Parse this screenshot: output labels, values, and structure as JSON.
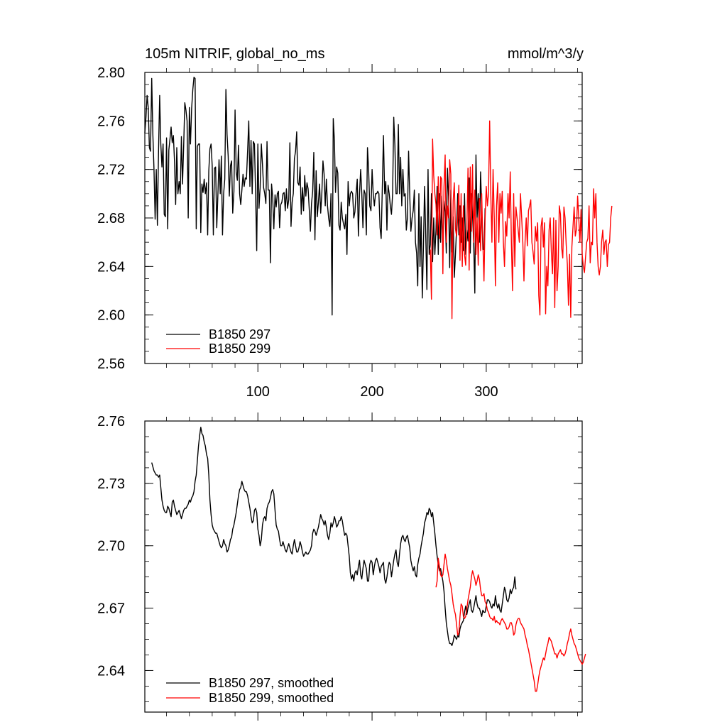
{
  "chart_data": [
    {
      "type": "line",
      "title": "105m NITRIF, global_no_ms",
      "units": "mmol/m^3/y",
      "xlim": [
        1,
        384
      ],
      "ylim": [
        2.56,
        2.8
      ],
      "xticks": [
        100,
        200,
        300
      ],
      "yticks": [
        2.56,
        2.6,
        2.64,
        2.68,
        2.72,
        2.76,
        2.8
      ],
      "ytick_labels": [
        "2.56",
        "2.60",
        "2.64",
        "2.68",
        "2.72",
        "2.76",
        "2.80"
      ],
      "xtick_labels": [
        "100",
        "200",
        "300"
      ],
      "legend_position": "bottom-left",
      "series": [
        {
          "name": "B1850 297",
          "color": "#000000",
          "x_start": 1,
          "x_step": 1,
          "values": [
            2.75,
            2.763,
            2.781,
            2.771,
            2.738,
            2.735,
            2.795,
            2.749,
            2.72,
            2.679,
            2.72,
            2.674,
            2.735,
            2.781,
            2.741,
            2.722,
            2.741,
            2.683,
            2.681,
            2.746,
            2.671,
            2.736,
            2.745,
            2.755,
            2.742,
            2.748,
            2.727,
            2.691,
            2.738,
            2.7,
            2.71,
            2.7,
            2.747,
            2.708,
            2.739,
            2.775,
            2.769,
            2.76,
            2.68,
            2.771,
            2.741,
            2.77,
            2.786,
            2.796,
            2.795,
            2.671,
            2.739,
            2.741,
            2.741,
            2.668,
            2.708,
            2.701,
            2.712,
            2.7,
            2.709,
            2.666,
            2.719,
            2.737,
            2.741,
            2.723,
            2.666,
            2.721,
            2.722,
            2.672,
            2.699,
            2.728,
            2.7,
            2.731,
            2.666,
            2.7,
            2.712,
            2.786,
            2.749,
            2.731,
            2.698,
            2.723,
            2.727,
            2.684,
            2.702,
            2.769,
            2.718,
            2.711,
            2.74,
            2.7,
            2.691,
            2.703,
            2.716,
            2.706,
            2.713,
            2.712,
            2.736,
            2.76,
            2.706,
            2.744,
            2.7,
            2.743,
            2.741,
            2.7,
            2.653,
            2.741,
            2.688,
            2.705,
            2.741,
            2.724,
            2.705,
            2.7,
            2.692,
            2.743,
            2.703,
            2.703,
            2.643,
            2.708,
            2.697,
            2.671,
            2.699,
            2.689,
            2.7,
            2.702,
            2.672,
            2.691,
            2.693,
            2.7,
            2.701,
            2.686,
            2.704,
            2.688,
            2.695,
            2.742,
            2.673,
            2.693,
            2.7,
            2.729,
            2.735,
            2.751,
            2.709,
            2.707,
            2.722,
            2.683,
            2.705,
            2.686,
            2.715,
            2.698,
            2.709,
            2.704,
            2.687,
            2.669,
            2.692,
            2.702,
            2.734,
            2.662,
            2.719,
            2.681,
            2.693,
            2.708,
            2.684,
            2.7,
            2.727,
            2.716,
            2.69,
            2.712,
            2.69,
            2.68,
            2.673,
            2.7,
            2.6,
            2.762,
            2.744,
            2.701,
            2.722,
            2.717,
            2.674,
            2.67,
            2.693,
            2.68,
            2.675,
            2.671,
            2.683,
            2.65,
            2.71,
            2.69,
            2.7,
            2.702,
            2.7,
            2.68,
            2.685,
            2.7,
            2.712,
            2.665,
            2.7,
            2.72,
            2.7,
            2.672,
            2.703,
            2.7,
            2.666,
            2.738,
            2.72,
            2.69,
            2.686,
            2.72,
            2.7,
            2.69,
            2.7,
            2.7,
            2.702,
            2.7,
            2.672,
            2.663,
            2.705,
            2.748,
            2.7,
            2.71,
            2.67,
            2.707,
            2.7,
            2.69,
            2.683,
            2.7,
            2.763,
            2.74,
            2.7,
            2.7,
            2.757,
            2.7,
            2.73,
            2.69,
            2.72,
            2.698,
            2.7,
            2.67,
            2.68,
            2.735,
            2.7,
            2.669,
            2.68,
            2.686,
            2.703,
            2.66,
            2.651,
            2.624,
            2.7,
            2.64,
            2.681,
            2.614,
            2.656,
            2.706,
            2.665,
            2.621,
            2.72,
            2.65,
            2.658,
            2.7,
            2.644,
            2.68,
            2.65,
            2.67,
            2.706,
            2.65,
            2.7,
            2.66,
            2.698,
            2.654,
            2.694,
            2.685,
            2.651,
            2.721,
            2.698,
            2.639,
            2.703,
            2.652,
            2.681,
            2.631,
            2.65,
            2.671,
            2.7,
            2.666,
            2.69,
            2.66,
            2.68,
            2.653,
            2.7,
            2.65,
            2.67,
            2.661,
            2.713,
            2.651,
            2.7,
            2.682,
            2.66,
            2.618,
            2.732,
            2.68,
            2.7,
            2.66,
            2.718,
            2.688,
            2.654,
            2.654,
            2.688
          ]
        },
        {
          "name": "B1850 299",
          "color": "#ff0000",
          "x_start": 251,
          "x_step": 1,
          "values": [
            2.654,
            2.613,
            2.745,
            2.715,
            2.7,
            2.691,
            2.666,
            2.714,
            2.663,
            2.714,
            2.712,
            2.634,
            2.706,
            2.732,
            2.66,
            2.69,
            2.68,
            2.728,
            2.716,
            2.597,
            2.694,
            2.709,
            2.671,
            2.665,
            2.68,
            2.707,
            2.645,
            2.7,
            2.64,
            2.69,
            2.65,
            2.641,
            2.672,
            2.721,
            2.637,
            2.722,
            2.669,
            2.724,
            2.66,
            2.703,
            2.65,
            2.68,
            2.641,
            2.696,
            2.653,
            2.7,
            2.66,
            2.628,
            2.68,
            2.706,
            2.69,
            2.7,
            2.76,
            2.7,
            2.66,
            2.72,
            2.68,
            2.624,
            2.69,
            2.709,
            2.66,
            2.7,
            2.684,
            2.702,
            2.66,
            2.64,
            2.677,
            2.665,
            2.7,
            2.68,
            2.718,
            2.66,
            2.62,
            2.7,
            2.64,
            2.689,
            2.68,
            2.67,
            2.66,
            2.7,
            2.68,
            2.66,
            2.628,
            2.661,
            2.68,
            2.657,
            2.686,
            2.69,
            2.695,
            2.66,
            2.652,
            2.642,
            2.673,
            2.661,
            2.676,
            2.616,
            2.6,
            2.673,
            2.68,
            2.656,
            2.676,
            2.601,
            2.64,
            2.624,
            2.67,
            2.68,
            2.652,
            2.634,
            2.68,
            2.606,
            2.678,
            2.62,
            2.64,
            2.69,
            2.683,
            2.656,
            2.647,
            2.689,
            2.68,
            2.658,
            2.642,
            2.608,
            2.65,
            2.598,
            2.656,
            2.673,
            2.689,
            2.665,
            2.671,
            2.698,
            2.68,
            2.66,
            2.687,
            2.65,
            2.64,
            2.635,
            2.648,
            2.66,
            2.663,
            2.69,
            2.643,
            2.66,
            2.658,
            2.704,
            2.68,
            2.7,
            2.66,
            2.64,
            2.633,
            2.64,
            2.66,
            2.67,
            2.65,
            2.66,
            2.662,
            2.64,
            2.658,
            2.66,
            2.68,
            2.69
          ]
        }
      ]
    },
    {
      "type": "line",
      "title": "",
      "xlim": [
        1,
        384
      ],
      "ylim": [
        2.62,
        2.76
      ],
      "xticks": [
        100,
        200,
        300
      ],
      "yticks": [
        2.64,
        2.67,
        2.7,
        2.73,
        2.76
      ],
      "ytick_labels": [
        "2.64",
        "2.67",
        "2.70",
        "2.73",
        "2.76"
      ],
      "xtick_labels": [],
      "legend_position": "bottom-left",
      "series": [
        {
          "name": "B1850 297, smoothed",
          "color": "#000000",
          "x_start": 7,
          "x_step": 1,
          "values": [
            2.74,
            2.738,
            2.736,
            2.735,
            2.734,
            2.734,
            2.733,
            2.734,
            2.728,
            2.722,
            2.719,
            2.717,
            2.716,
            2.716,
            2.719,
            2.718,
            2.716,
            2.714,
            2.721,
            2.722,
            2.719,
            2.717,
            2.715,
            2.716,
            2.717,
            2.715,
            2.713,
            2.715,
            2.717,
            2.718,
            2.718,
            2.719,
            2.72,
            2.722,
            2.721,
            2.723,
            2.724,
            2.726,
            2.731,
            2.734,
            2.741,
            2.748,
            2.753,
            2.757,
            2.754,
            2.753,
            2.75,
            2.748,
            2.744,
            2.742,
            2.734,
            2.722,
            2.715,
            2.71,
            2.708,
            2.707,
            2.706,
            2.706,
            2.704,
            2.702,
            2.7,
            2.699,
            2.7,
            2.703,
            2.701,
            2.7,
            2.697,
            2.698,
            2.7,
            2.703,
            2.704,
            2.708,
            2.71,
            2.713,
            2.716,
            2.72,
            2.724,
            2.727,
            2.728,
            2.731,
            2.729,
            2.727,
            2.726,
            2.726,
            2.724,
            2.721,
            2.718,
            2.714,
            2.711,
            2.712,
            2.717,
            2.718,
            2.716,
            2.708,
            2.705,
            2.7,
            2.703,
            2.71,
            2.713,
            2.714,
            2.712,
            2.718,
            2.72,
            2.721,
            2.723,
            2.726,
            2.727,
            2.725,
            2.717,
            2.71,
            2.708,
            2.707,
            2.703,
            2.7,
            2.7,
            2.702,
            2.7,
            2.698,
            2.697,
            2.699,
            2.701,
            2.699,
            2.697,
            2.696,
            2.7,
            2.703,
            2.7,
            2.697,
            2.697,
            2.699,
            2.702,
            2.7,
            2.697,
            2.695,
            2.696,
            2.697,
            2.696,
            2.696,
            2.697,
            2.698,
            2.7,
            2.706,
            2.708,
            2.707,
            2.705,
            2.707,
            2.709,
            2.712,
            2.715,
            2.713,
            2.712,
            2.71,
            2.712,
            2.709,
            2.705,
            2.703,
            2.706,
            2.711,
            2.709,
            2.711,
            2.714,
            2.712,
            2.709,
            2.71,
            2.712,
            2.712,
            2.714,
            2.712,
            2.708,
            2.705,
            2.706,
            2.705,
            2.7,
            2.695,
            2.687,
            2.684,
            2.686,
            2.683,
            2.687,
            2.688,
            2.686,
            2.69,
            2.693,
            2.686,
            2.684,
            2.689,
            2.693,
            2.691,
            2.689,
            2.683,
            2.683,
            2.691,
            2.693,
            2.692,
            2.686,
            2.69,
            2.693,
            2.694,
            2.692,
            2.69,
            2.687,
            2.69,
            2.691,
            2.692,
            2.684,
            2.682,
            2.685,
            2.689,
            2.692,
            2.691,
            2.685,
            2.689,
            2.693,
            2.696,
            2.698,
            2.692,
            2.69,
            2.696,
            2.701,
            2.704,
            2.705,
            2.703,
            2.702,
            2.704,
            2.705,
            2.702,
            2.699,
            2.693,
            2.69,
            2.688,
            2.69,
            2.686,
            2.685,
            2.691,
            2.694,
            2.696,
            2.7,
            2.703,
            2.706,
            2.711,
            2.713,
            2.716,
            2.715,
            2.718,
            2.717,
            2.714,
            2.716,
            2.711,
            2.706,
            2.7,
            2.695,
            2.691,
            2.688,
            2.689,
            2.686,
            2.683,
            2.678,
            2.67,
            2.663,
            2.659,
            2.655,
            2.653,
            2.653,
            2.652,
            2.654,
            2.657,
            2.656,
            2.655,
            2.657,
            2.656,
            2.66,
            2.662,
            2.663,
            2.664,
            2.668,
            2.671,
            2.667,
            2.67,
            2.672,
            2.674,
            2.669,
            2.668,
            2.67,
            2.673,
            2.676,
            2.672,
            2.67,
            2.67,
            2.668,
            2.666,
            2.669,
            2.668,
            2.668,
            2.671,
            2.674,
            2.674,
            2.673,
            2.671,
            2.67,
            2.672,
            2.671,
            2.676,
            2.672,
            2.67,
            2.672,
            2.669,
            2.668,
            2.672,
            2.676,
            2.68,
            2.678,
            2.674,
            2.673,
            2.675,
            2.679,
            2.677,
            2.679,
            2.68,
            2.685,
            2.679
          ]
        },
        {
          "name": "B1850 299, smoothed",
          "color": "#ff0000",
          "x_start": 256,
          "x_step": 1,
          "values": [
            2.68,
            2.683,
            2.694,
            2.69,
            2.686,
            2.685,
            2.686,
            2.691,
            2.696,
            2.693,
            2.689,
            2.686,
            2.683,
            2.681,
            2.677,
            2.672,
            2.669,
            2.667,
            2.662,
            2.657,
            2.658,
            2.666,
            2.672,
            2.671,
            2.666,
            2.665,
            2.666,
            2.67,
            2.674,
            2.677,
            2.68,
            2.685,
            2.688,
            2.686,
            2.684,
            2.681,
            2.683,
            2.686,
            2.684,
            2.679,
            2.676,
            2.676,
            2.677,
            2.673,
            2.672,
            2.669,
            2.668,
            2.666,
            2.665,
            2.665,
            2.664,
            2.666,
            2.663,
            2.664,
            2.663,
            2.663,
            2.662,
            2.664,
            2.665,
            2.664,
            2.663,
            2.662,
            2.66,
            2.66,
            2.661,
            2.663,
            2.663,
            2.661,
            2.657,
            2.658,
            2.662,
            2.664,
            2.665,
            2.665,
            2.663,
            2.662,
            2.661,
            2.66,
            2.657,
            2.655,
            2.652,
            2.65,
            2.647,
            2.644,
            2.641,
            2.638,
            2.635,
            2.63,
            2.63,
            2.633,
            2.637,
            2.64,
            2.642,
            2.644,
            2.646,
            2.645,
            2.648,
            2.651,
            2.653,
            2.656,
            2.655,
            2.654,
            2.652,
            2.65,
            2.648,
            2.648,
            2.646,
            2.648,
            2.649,
            2.65,
            2.648,
            2.648,
            2.647,
            2.648,
            2.65,
            2.653,
            2.655,
            2.658,
            2.66,
            2.657,
            2.655,
            2.653,
            2.652,
            2.65,
            2.648,
            2.646,
            2.645,
            2.644,
            2.643,
            2.644,
            2.646,
            2.648
          ]
        }
      ]
    }
  ]
}
